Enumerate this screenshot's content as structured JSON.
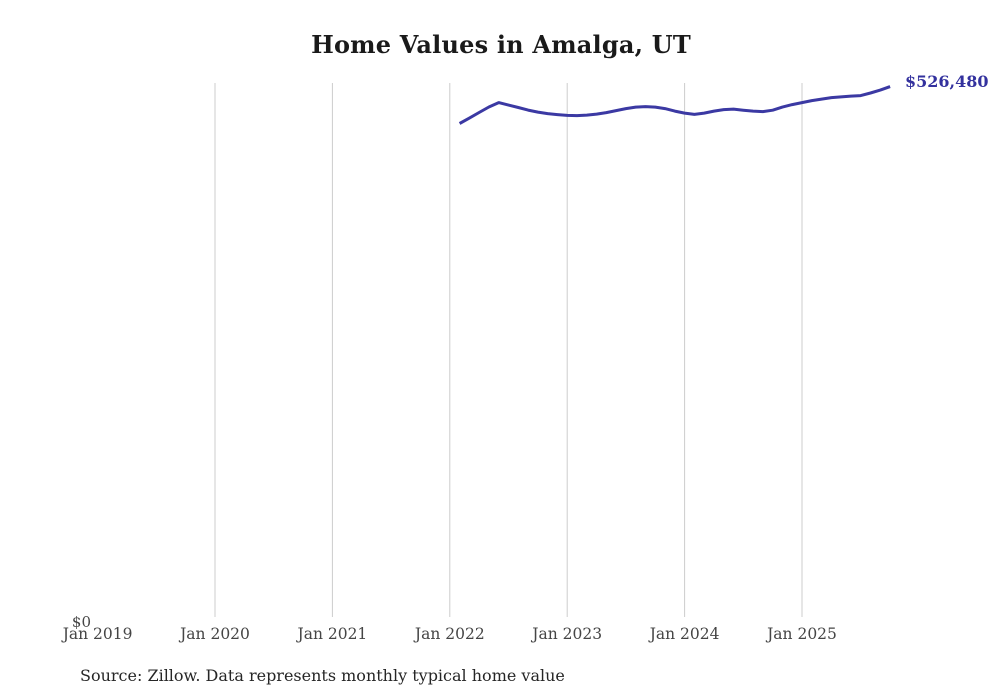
{
  "title": "Home Values in Amalga, UT",
  "source_note": "Source: Zillow. Data represents monthly typical home value",
  "y_zero_label": "$0",
  "end_value_label": "$526,480",
  "colors": {
    "line": "#3b39a3",
    "end_label": "#33319e",
    "grid": "#cccccc",
    "tick_text": "#454545",
    "title_text": "#1a1a1a",
    "source_text": "#262626",
    "background": "#ffffff"
  },
  "chart_data": {
    "type": "line",
    "title": "Home Values in Amalga, UT",
    "xlabel": "",
    "ylabel": "",
    "x_tick_labels": [
      "Jan 2019",
      "Jan 2020",
      "Jan 2021",
      "Jan 2022",
      "Jan 2023",
      "Jan 2024",
      "Jan 2025"
    ],
    "x_axis_range": [
      "Jan 2019",
      "Oct 2025"
    ],
    "ylim": [
      0,
      530000
    ],
    "grid": "vertical-gridlines-only, none at Jan 2019",
    "legend_position": "none",
    "end_annotation": "$526,480",
    "series": [
      {
        "name": "Monthly typical home value",
        "months": [
          "2022-02",
          "2022-03",
          "2022-04",
          "2022-05",
          "2022-06",
          "2022-07",
          "2022-08",
          "2022-09",
          "2022-10",
          "2022-11",
          "2022-12",
          "2023-01",
          "2023-02",
          "2023-03",
          "2023-04",
          "2023-05",
          "2023-06",
          "2023-07",
          "2023-08",
          "2023-09",
          "2023-10",
          "2023-11",
          "2023-12",
          "2024-01",
          "2024-02",
          "2024-03",
          "2024-04",
          "2024-05",
          "2024-06",
          "2024-07",
          "2024-08",
          "2024-09",
          "2024-10",
          "2024-11",
          "2024-12",
          "2025-01",
          "2025-02",
          "2025-03",
          "2025-04",
          "2025-05",
          "2025-06",
          "2025-07",
          "2025-08",
          "2025-09",
          "2025-10"
        ],
        "values": [
          490000,
          495400,
          500900,
          506300,
          510700,
          508200,
          505800,
          503300,
          501300,
          499800,
          498800,
          498000,
          497800,
          498300,
          499300,
          500800,
          502800,
          504700,
          506200,
          506700,
          506200,
          504700,
          502300,
          500300,
          499000,
          500300,
          502300,
          503700,
          504200,
          503200,
          502300,
          501800,
          503200,
          506200,
          508700,
          510700,
          512600,
          514100,
          515600,
          516300,
          517100,
          517600,
          520100,
          523000,
          526480
        ]
      }
    ]
  }
}
